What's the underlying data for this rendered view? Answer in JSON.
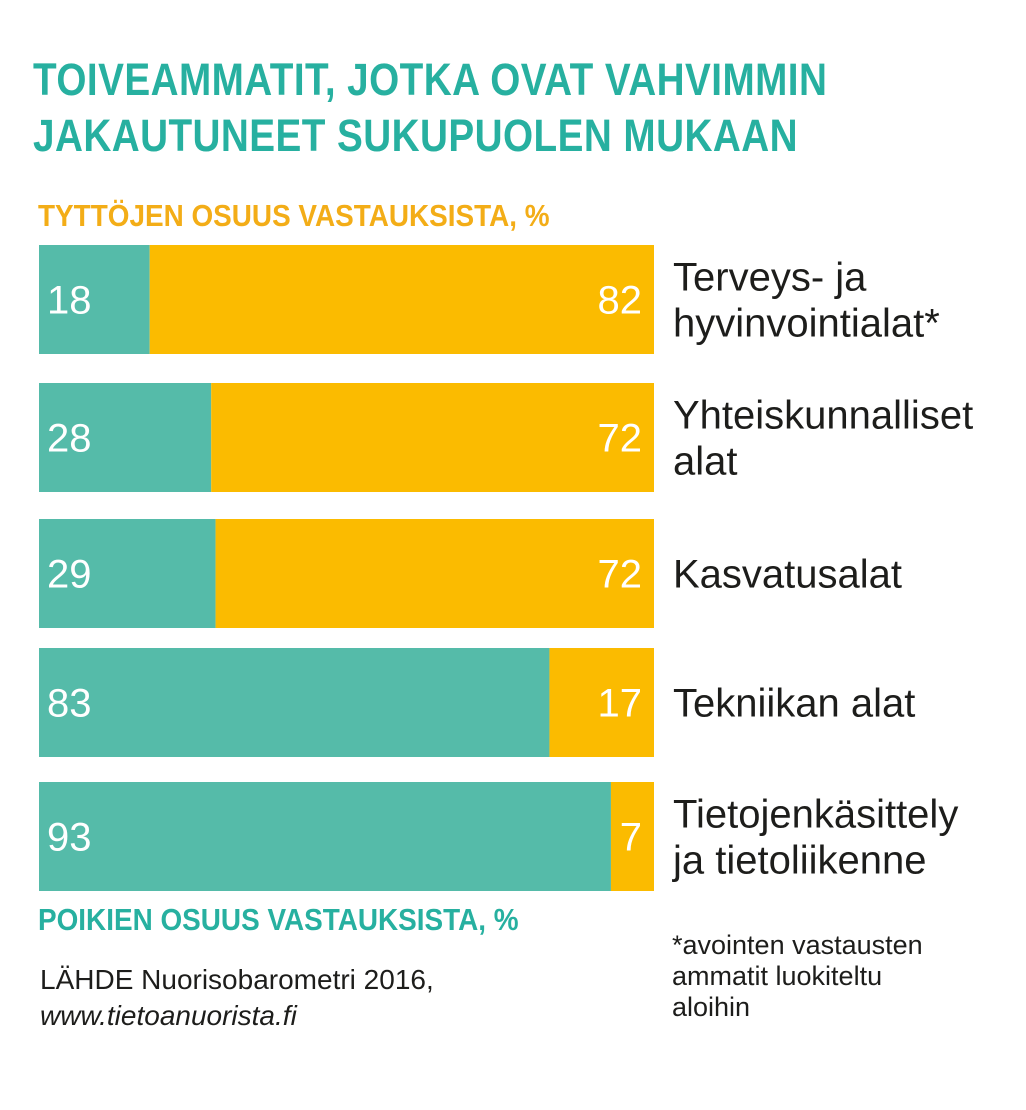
{
  "title": {
    "line1": "TOIVEAMMATIT, JOTKA OVAT VAHVIMMIN",
    "line2": "JAKAUTUNEET SUKUPUOLEN MUKAAN"
  },
  "girls_label": "TYTTÖJEN OSUUS VASTAUKSISTA, %",
  "boys_label": "POIKIEN OSUUS VASTAUKSISTA, %",
  "source": {
    "line1": "LÄHDE Nuorisobarometri 2016,",
    "url": "www.tietoanuorista.fi"
  },
  "footnote": "*avointen vastausten\nammatit luokiteltu\naloihin",
  "colors": {
    "boys": "#55bba9",
    "girls": "#fbbb00"
  },
  "chart_data": {
    "type": "bar",
    "orientation": "horizontal",
    "stacked": true,
    "categories": [
      [
        "Terveys- ja",
        "hyvinvointialat*"
      ],
      [
        "Yhteiskunnalliset",
        "alat"
      ],
      [
        "Kasvatusalat"
      ],
      [
        "Tekniikan alat"
      ],
      [
        "Tietojenkäsittely",
        "ja tietoliikenne"
      ]
    ],
    "series": [
      {
        "name": "POIKIEN OSUUS VASTAUKSISTA, %",
        "values": [
          18,
          28,
          29,
          83,
          93
        ]
      },
      {
        "name": "TYTTÖJEN OSUUS VASTAUKSISTA, %",
        "values": [
          82,
          72,
          72,
          17,
          7
        ]
      }
    ],
    "xlim": [
      0,
      100
    ],
    "grid": false,
    "legend": "labels above and below bars"
  }
}
